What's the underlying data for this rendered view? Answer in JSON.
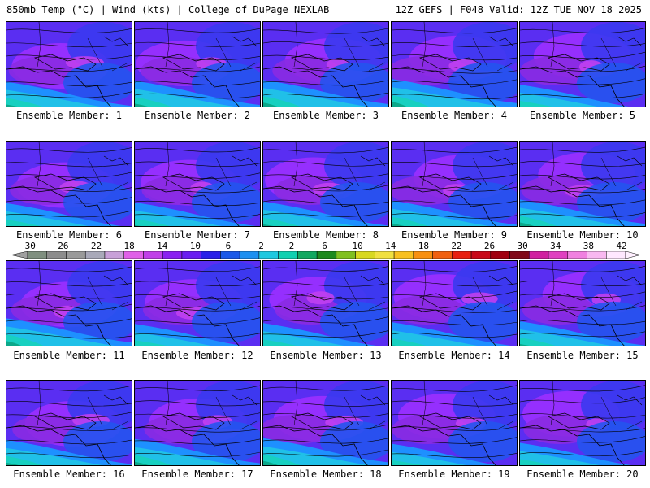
{
  "header": {
    "left": "850mb Temp (°C) | Wind (kts) | College of DuPage NEXLAB",
    "right": "12Z GEFS | F048 Valid: 12Z TUE NOV 18 2025"
  },
  "member_label_prefix": "Ensemble Member: ",
  "members": [
    1,
    2,
    3,
    4,
    5,
    6,
    7,
    8,
    9,
    10,
    11,
    12,
    13,
    14,
    15,
    16,
    17,
    18,
    19,
    20
  ],
  "colorbar": {
    "tick_labels": [
      "−30",
      "−26",
      "−22",
      "−18",
      "−14",
      "−10",
      "−6",
      "−2",
      "2",
      "6",
      "10",
      "14",
      "18",
      "22",
      "26",
      "30",
      "34",
      "38",
      "42"
    ],
    "colors": [
      "#7f8f7f",
      "#8c8c8c",
      "#9a9a9a",
      "#a9a9b9",
      "#c8a0d8",
      "#e060e8",
      "#c040e8",
      "#8a20f0",
      "#6a1ef0",
      "#2a20e8",
      "#1b58e8",
      "#1e90f0",
      "#20c8e0",
      "#10d0b0",
      "#12a860",
      "#1e8a1e",
      "#80c020",
      "#d8d820",
      "#f0e040",
      "#f8c020",
      "#f89010",
      "#f06010",
      "#e82010",
      "#c80818",
      "#a00010",
      "#800818",
      "#d020a0",
      "#e040c0",
      "#f080e0",
      "#f8b8f0",
      "#ffe8ff"
    ]
  },
  "map_colors": {
    "deep_purple": "#8a2be2",
    "violet": "#9b30ff",
    "blue_violet": "#5a2ef2",
    "blue": "#3a3af0",
    "royal_blue": "#2454ee",
    "light_blue": "#1e90ff",
    "cyan": "#20c0e8",
    "aqua": "#18d0c0",
    "teal": "#0ca88a",
    "green": "#2a8a3a",
    "magenta": "#c040f0",
    "pink": "#e060f0"
  }
}
